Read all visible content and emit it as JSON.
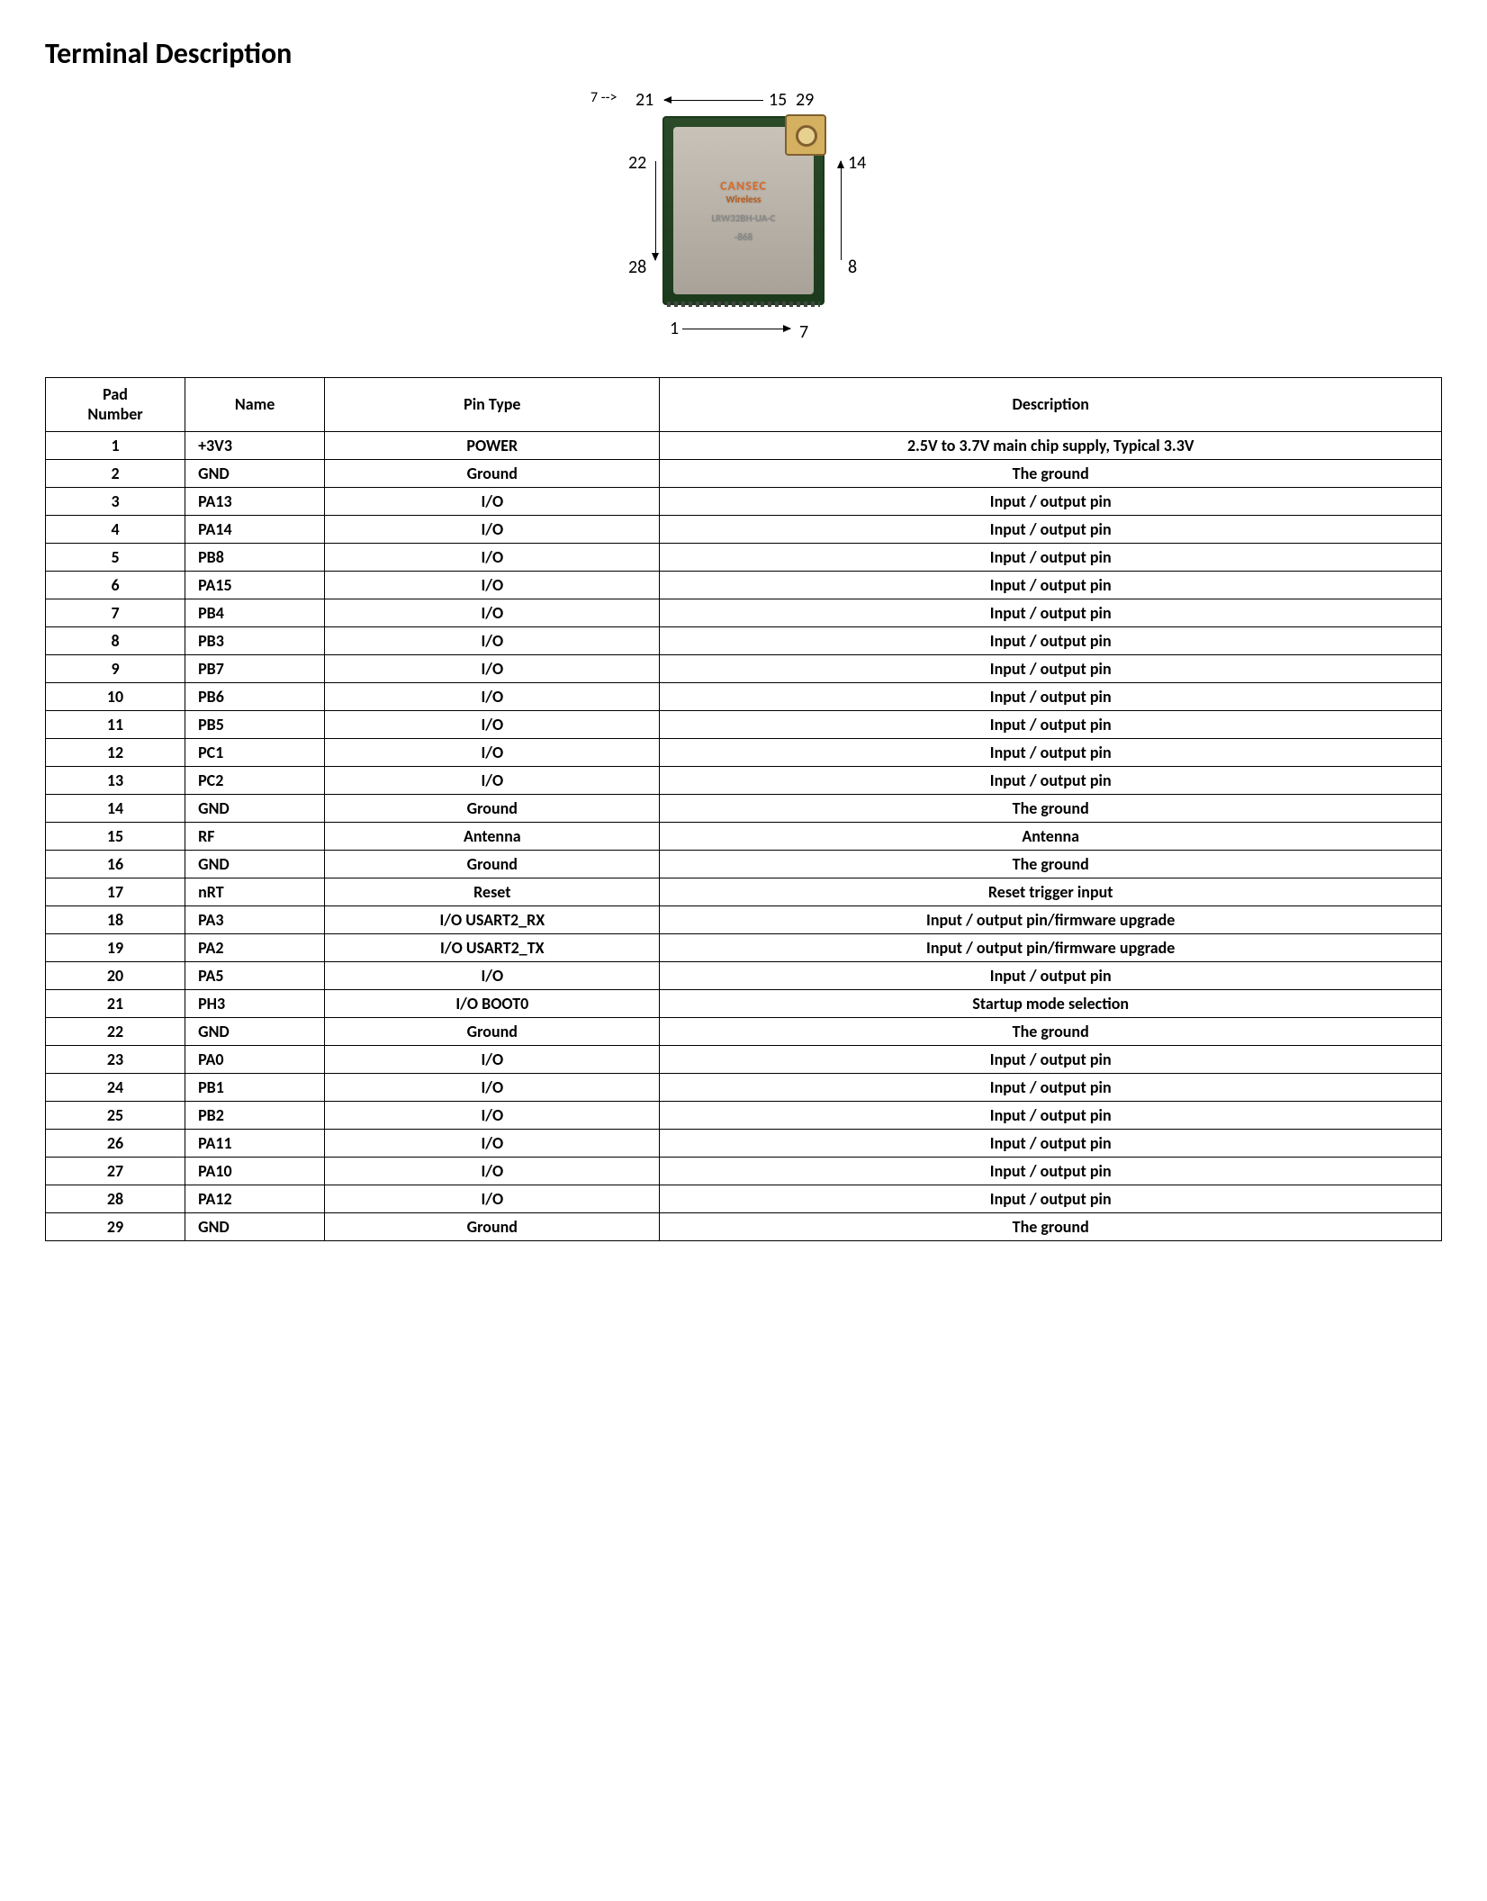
{
  "title": "Terminal Description",
  "module": {
    "brand": "CANSEC",
    "sub": "Wireless",
    "part": "LRW32BH-UA-C",
    "freq": "-868",
    "labels": {
      "top_left": "21",
      "top_right_a": "15",
      "top_right_b": "29",
      "left_top": "22",
      "left_bottom": "28",
      "right_top": "14",
      "right_bottom": "8",
      "bottom_left": "1",
      "bottom_right": "7"
    }
  },
  "table": {
    "columns": [
      "Pad Number",
      "Name",
      "Pin Type",
      "Description"
    ],
    "rows": [
      [
        "1",
        "+3V3",
        "POWER",
        "2.5V to 3.7V main chip supply, Typical 3.3V"
      ],
      [
        "2",
        "GND",
        "Ground",
        "The ground"
      ],
      [
        "3",
        "PA13",
        "I/O",
        "Input / output pin"
      ],
      [
        "4",
        "PA14",
        "I/O",
        "Input / output pin"
      ],
      [
        "5",
        "PB8",
        "I/O",
        "Input / output pin"
      ],
      [
        "6",
        "PA15",
        "I/O",
        "Input / output pin"
      ],
      [
        "7",
        "PB4",
        "I/O",
        "Input / output pin"
      ],
      [
        "8",
        "PB3",
        "I/O",
        "Input / output pin"
      ],
      [
        "9",
        "PB7",
        "I/O",
        "Input / output pin"
      ],
      [
        "10",
        "PB6",
        "I/O",
        "Input / output pin"
      ],
      [
        "11",
        "PB5",
        "I/O",
        "Input / output pin"
      ],
      [
        "12",
        "PC1",
        "I/O",
        "Input / output pin"
      ],
      [
        "13",
        "PC2",
        "I/O",
        "Input / output pin"
      ],
      [
        "14",
        "GND",
        "Ground",
        "The ground"
      ],
      [
        "15",
        "RF",
        "Antenna",
        "Antenna"
      ],
      [
        "16",
        "GND",
        "Ground",
        "The ground"
      ],
      [
        "17",
        "nRT",
        "Reset",
        "Reset trigger input"
      ],
      [
        "18",
        "PA3",
        "I/O   USART2_RX",
        "Input / output pin/firmware upgrade"
      ],
      [
        "19",
        "PA2",
        "I/O   USART2_TX",
        "Input / output pin/firmware upgrade"
      ],
      [
        "20",
        "PA5",
        "I/O",
        "Input / output pin"
      ],
      [
        "21",
        "PH3",
        "I/O BOOT0",
        "Startup mode selection"
      ],
      [
        "22",
        "GND",
        "Ground",
        "The ground"
      ],
      [
        "23",
        "PA0",
        "I/O",
        "Input / output pin"
      ],
      [
        "24",
        "PB1",
        "I/O",
        "Input / output pin"
      ],
      [
        "25",
        "PB2",
        "I/O",
        "Input / output pin"
      ],
      [
        "26",
        "PA11",
        "I/O",
        "Input / output pin"
      ],
      [
        "27",
        "PA10",
        "I/O",
        "Input / output pin"
      ],
      [
        "28",
        "PA12",
        "I/O",
        "Input / output pin"
      ],
      [
        "29",
        "GND",
        "Ground",
        "The ground"
      ]
    ]
  }
}
